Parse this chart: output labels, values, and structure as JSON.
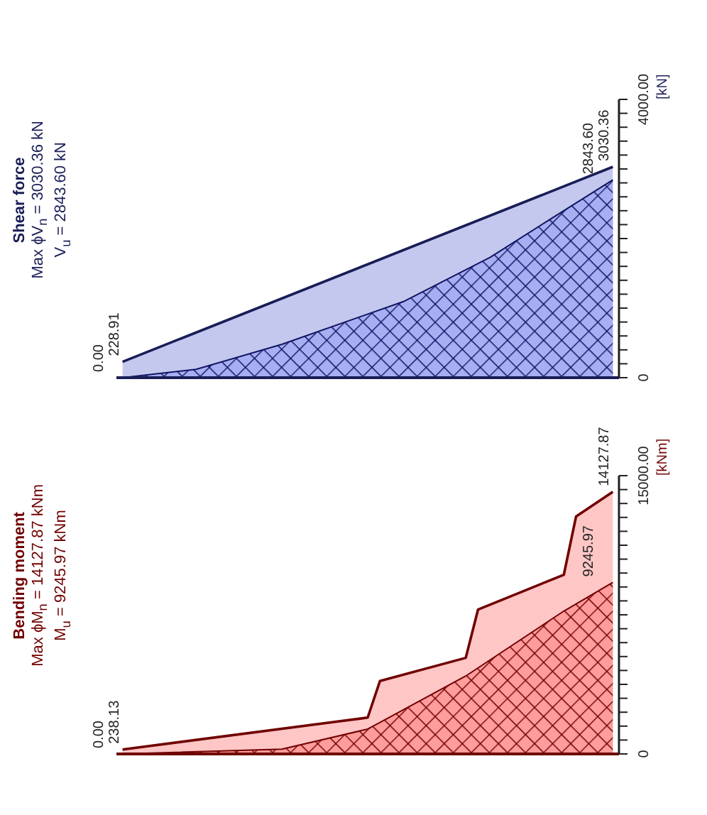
{
  "chart_data": [
    {
      "type": "area",
      "title": "Shear force",
      "annotations": [
        "Max ϕV$_{n}$ = 3030.36 kN",
        "V$_{u}$ = 2843.60 kN"
      ],
      "ylabel": "[kN]",
      "tick_labels": "y",
      "grid": false,
      "legend": false,
      "categories": [
        null,
        null,
        null,
        null,
        null,
        null,
        null,
        null,
        null,
        null,
        null,
        null,
        null,
        null,
        null,
        null,
        null,
        null,
        null,
        null,
        null,
        null,
        null,
        null,
        null,
        null,
        null,
        null,
        null,
        null,
        null,
        null,
        null,
        null,
        null,
        null,
        null,
        null,
        null,
        null,
        null
      ],
      "ylim": [
        0,
        4000
      ],
      "yticks": [
        0,
        {
          "value": 200,
          "label": null
        },
        {
          "value": 400,
          "label": null
        },
        {
          "value": 600,
          "label": null
        },
        {
          "value": 800,
          "label": null
        },
        {
          "value": 1000,
          "label": null
        },
        {
          "value": 1200,
          "label": null
        },
        {
          "value": 1400,
          "label": null
        },
        {
          "value": 1600,
          "label": null
        },
        {
          "value": 1800,
          "label": null
        },
        {
          "value": 2000,
          "label": null
        },
        {
          "value": 2200,
          "label": null
        },
        {
          "value": 2400,
          "label": null
        },
        {
          "value": 2600,
          "label": null
        },
        {
          "value": 2800,
          "label": null
        },
        {
          "value": 3000,
          "label": null
        },
        {
          "value": 3200,
          "label": null
        },
        {
          "value": 3400,
          "label": null
        },
        {
          "value": 3600,
          "label": null
        },
        {
          "value": 3800,
          "label": null
        },
        {
          "value": 4000,
          "label": "4000.00"
        }
      ],
      "series": [
        {
          "color": "#c5c8ee",
          "values": [
            228.91,
            null,
            null,
            null,
            null,
            null,
            null,
            null,
            null,
            null,
            null,
            null,
            null,
            null,
            null,
            null,
            null,
            null,
            null,
            null,
            null,
            null,
            null,
            null,
            null,
            null,
            null,
            null,
            null,
            null,
            null,
            null,
            null,
            null,
            null,
            null,
            null,
            null,
            null,
            null,
            3030.36
          ],
          "value_labels": [
            "228.91",
            null,
            null,
            null,
            null,
            null,
            null,
            null,
            null,
            null,
            null,
            null,
            null,
            null,
            null,
            null,
            null,
            null,
            null,
            null,
            null,
            null,
            null,
            null,
            null,
            null,
            null,
            null,
            null,
            null,
            null,
            null,
            null,
            null,
            null,
            null,
            null,
            null,
            null,
            null,
            "3030.36"
          ]
        },
        {
          "color": "#a8aef2",
          "values": [
            0,
            null,
            null,
            null,
            null,
            null,
            120,
            null,
            null,
            null,
            null,
            null,
            null,
            480,
            null,
            null,
            null,
            null,
            null,
            null,
            null,
            null,
            null,
            1100,
            null,
            null,
            null,
            null,
            null,
            null,
            1730,
            null,
            null,
            null,
            null,
            2290,
            null,
            null,
            null,
            null,
            2843.6
          ],
          "value_labels": [
            "0.00",
            null,
            null,
            null,
            null,
            null,
            null,
            null,
            null,
            null,
            null,
            null,
            null,
            null,
            null,
            null,
            null,
            null,
            null,
            null,
            null,
            null,
            null,
            null,
            null,
            null,
            null,
            null,
            null,
            null,
            null,
            null,
            null,
            null,
            null,
            null,
            null,
            null,
            null,
            null,
            "2843.60"
          ]
        }
      ]
    },
    {
      "type": "area",
      "title": "Bending moment",
      "annotations": [
        "Max ϕM$_{n}$ = 14127.87 kNm",
        "M$_{u}$ = 9245.97 kNm"
      ],
      "ylabel": "[kNm]",
      "tick_labels": "y",
      "grid": false,
      "legend": false,
      "categories": [
        null,
        null,
        null,
        null,
        null,
        null,
        null,
        null,
        null,
        null,
        null,
        null,
        null,
        null,
        null,
        null,
        null,
        null,
        null,
        null,
        null,
        null,
        null,
        null,
        null,
        null,
        null,
        null,
        null,
        null,
        null,
        null,
        null,
        null,
        null,
        null,
        null,
        null,
        null,
        null,
        null
      ],
      "ylim": [
        0,
        15000
      ],
      "yticks": [
        0,
        {
          "value": 750,
          "label": null
        },
        {
          "value": 1500,
          "label": null
        },
        {
          "value": 2250,
          "label": null
        },
        {
          "value": 3000,
          "label": null
        },
        {
          "value": 3750,
          "label": null
        },
        {
          "value": 4500,
          "label": null
        },
        {
          "value": 5250,
          "label": null
        },
        {
          "value": 6000,
          "label": null
        },
        {
          "value": 6750,
          "label": null
        },
        {
          "value": 7500,
          "label": null
        },
        {
          "value": 8250,
          "label": null
        },
        {
          "value": 9000,
          "label": null
        },
        {
          "value": 9750,
          "label": null
        },
        {
          "value": 10500,
          "label": null
        },
        {
          "value": 11250,
          "label": null
        },
        {
          "value": 12000,
          "label": null
        },
        {
          "value": 12750,
          "label": null
        },
        {
          "value": 13500,
          "label": null
        },
        {
          "value": 14250,
          "label": null
        },
        {
          "value": 15000,
          "label": "15000.00"
        }
      ],
      "series": [
        {
          "color": "#ffc6c6",
          "values": [
            238.13,
            null,
            null,
            null,
            null,
            null,
            null,
            null,
            null,
            null,
            null,
            null,
            null,
            null,
            null,
            null,
            null,
            null,
            null,
            null,
            1960,
            3930,
            null,
            null,
            null,
            null,
            null,
            null,
            5180,
            7780,
            null,
            null,
            null,
            null,
            null,
            null,
            9660,
            12800,
            null,
            null,
            14127.87
          ],
          "value_labels": [
            "238.13",
            null,
            null,
            null,
            null,
            null,
            null,
            null,
            null,
            null,
            null,
            null,
            null,
            null,
            null,
            null,
            null,
            null,
            null,
            null,
            null,
            null,
            null,
            null,
            null,
            null,
            null,
            null,
            null,
            null,
            null,
            null,
            null,
            null,
            null,
            null,
            null,
            null,
            null,
            null,
            "14127.87"
          ]
        },
        {
          "color": "#ff9c9c",
          "values": [
            0,
            null,
            null,
            null,
            null,
            null,
            null,
            null,
            null,
            null,
            null,
            null,
            null,
            260,
            null,
            null,
            null,
            null,
            null,
            null,
            1340,
            null,
            null,
            null,
            null,
            null,
            null,
            null,
            4200,
            null,
            null,
            null,
            null,
            null,
            null,
            null,
            7700,
            null,
            null,
            null,
            9245.97
          ],
          "value_labels": [
            "0.00",
            null,
            null,
            null,
            null,
            null,
            null,
            null,
            null,
            null,
            null,
            null,
            null,
            null,
            null,
            null,
            null,
            null,
            null,
            null,
            null,
            null,
            null,
            null,
            null,
            null,
            null,
            null,
            null,
            null,
            null,
            null,
            null,
            null,
            null,
            null,
            null,
            null,
            null,
            null,
            "9245.97"
          ]
        }
      ]
    }
  ]
}
